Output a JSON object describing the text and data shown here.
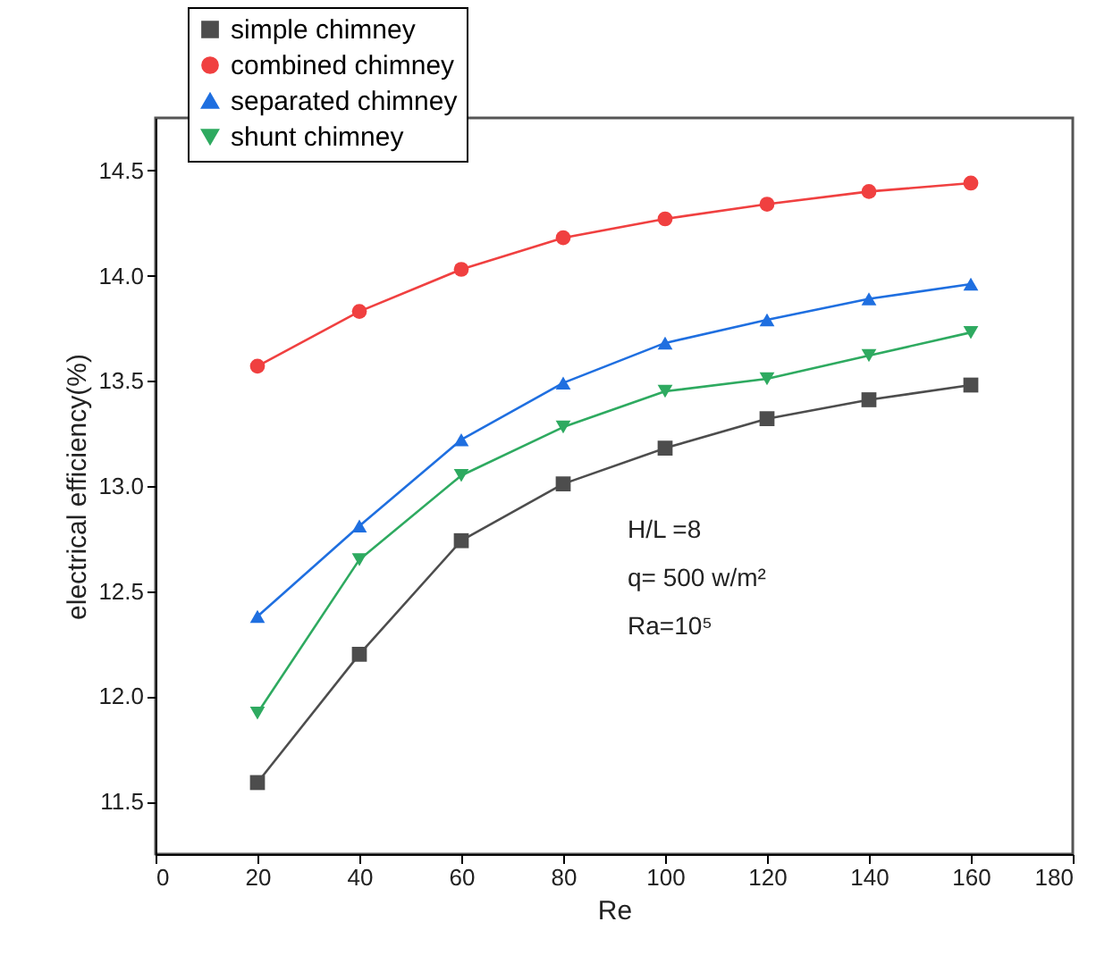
{
  "chart_data": {
    "type": "line",
    "xlabel": "Re",
    "ylabel": "electrical efficiency(%)",
    "x": [
      20,
      40,
      60,
      80,
      100,
      120,
      140,
      160
    ],
    "series": [
      {
        "name": "simple chimney",
        "color": "#4d4d4d",
        "marker": "square",
        "values": [
          11.59,
          12.2,
          12.74,
          13.01,
          13.18,
          13.32,
          13.41,
          13.48
        ]
      },
      {
        "name": "combined chimney",
        "color": "#f04040",
        "marker": "circle",
        "values": [
          13.57,
          13.83,
          14.03,
          14.18,
          14.27,
          14.34,
          14.4,
          14.44
        ]
      },
      {
        "name": "separated chimney",
        "color": "#1f6fe0",
        "marker": "triangle",
        "values": [
          12.38,
          12.81,
          13.22,
          13.49,
          13.68,
          13.79,
          13.89,
          13.96
        ]
      },
      {
        "name": "shunt chimney",
        "color": "#2eaa60",
        "marker": "triangle-down",
        "values": [
          11.92,
          12.65,
          13.05,
          13.28,
          13.45,
          13.51,
          13.62,
          13.73
        ]
      }
    ],
    "xlim": [
      0,
      180
    ],
    "xticks": [
      0,
      20,
      40,
      60,
      80,
      100,
      120,
      140,
      160,
      180
    ],
    "ylim": [
      11.25,
      14.75
    ],
    "yticks": [
      11.5,
      {
        "value": 12,
        "label": "12.0"
      },
      12.5,
      {
        "value": 13,
        "label": "13.0"
      },
      13.5,
      {
        "value": 14,
        "label": "14.0"
      },
      14.5
    ],
    "grid": false,
    "legend": "top left",
    "annotations": [
      "H/L =8",
      "q= 500 w/m²",
      "Ra=10⁵"
    ]
  }
}
